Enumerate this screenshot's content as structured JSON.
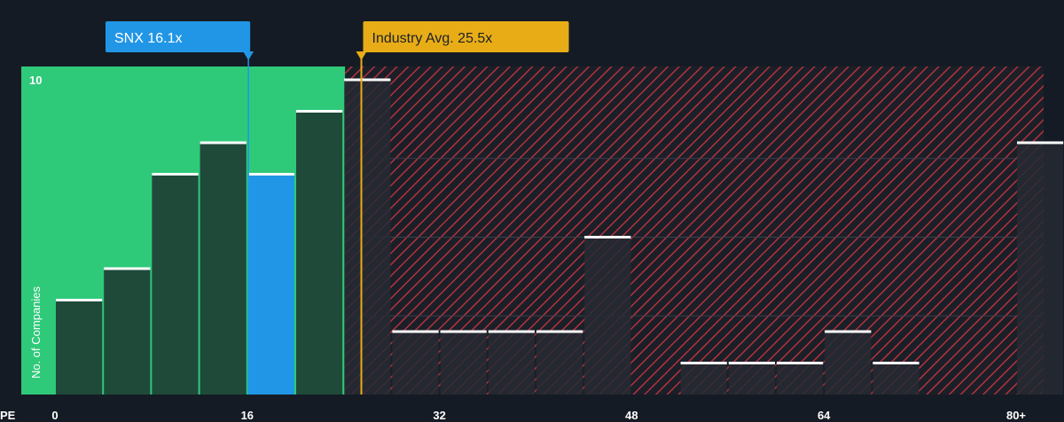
{
  "chart_data": {
    "type": "bar",
    "xlabel": "PE",
    "ylabel": "No. of Companies",
    "xlim": [
      0,
      82
    ],
    "ylim": [
      0,
      10
    ],
    "x_ticks": [
      {
        "value": 0,
        "label": "0"
      },
      {
        "value": 16,
        "label": "16"
      },
      {
        "value": 32,
        "label": "32"
      },
      {
        "value": 48,
        "label": "48"
      },
      {
        "value": 64,
        "label": "64"
      },
      {
        "value": 80,
        "label": "80+"
      }
    ],
    "y_ticks": [
      {
        "value": 10,
        "label": "10"
      }
    ],
    "bin_width": 4,
    "bins": [
      {
        "start": 0,
        "count": 3
      },
      {
        "start": 4,
        "count": 4
      },
      {
        "start": 8,
        "count": 7
      },
      {
        "start": 12,
        "count": 8
      },
      {
        "start": 16,
        "count": 7,
        "highlight": true
      },
      {
        "start": 20,
        "count": 9
      },
      {
        "start": 24,
        "count": 10
      },
      {
        "start": 28,
        "count": 2
      },
      {
        "start": 32,
        "count": 2
      },
      {
        "start": 36,
        "count": 2
      },
      {
        "start": 40,
        "count": 2
      },
      {
        "start": 44,
        "count": 5
      },
      {
        "start": 52,
        "count": 1
      },
      {
        "start": 56,
        "count": 1
      },
      {
        "start": 60,
        "count": 1
      },
      {
        "start": 64,
        "count": 2
      },
      {
        "start": 68,
        "count": 1
      },
      {
        "start": 80,
        "count": 8
      }
    ],
    "company": {
      "label": "SNX 16.1x",
      "value": 16.1
    },
    "industry": {
      "label": "Industry Avg. 25.5x",
      "value": 25.5
    },
    "colors": {
      "background": "#151b24",
      "fair_zone": "#2fc97a",
      "bar": "#1f4a3a",
      "bar_outside": "#262a33",
      "highlight_bar": "#2196e6",
      "company_callout": "#2196e6",
      "industry_callout": "#e8ad16",
      "hatch": "#b3323e",
      "bar_top": "#ffffff"
    }
  }
}
